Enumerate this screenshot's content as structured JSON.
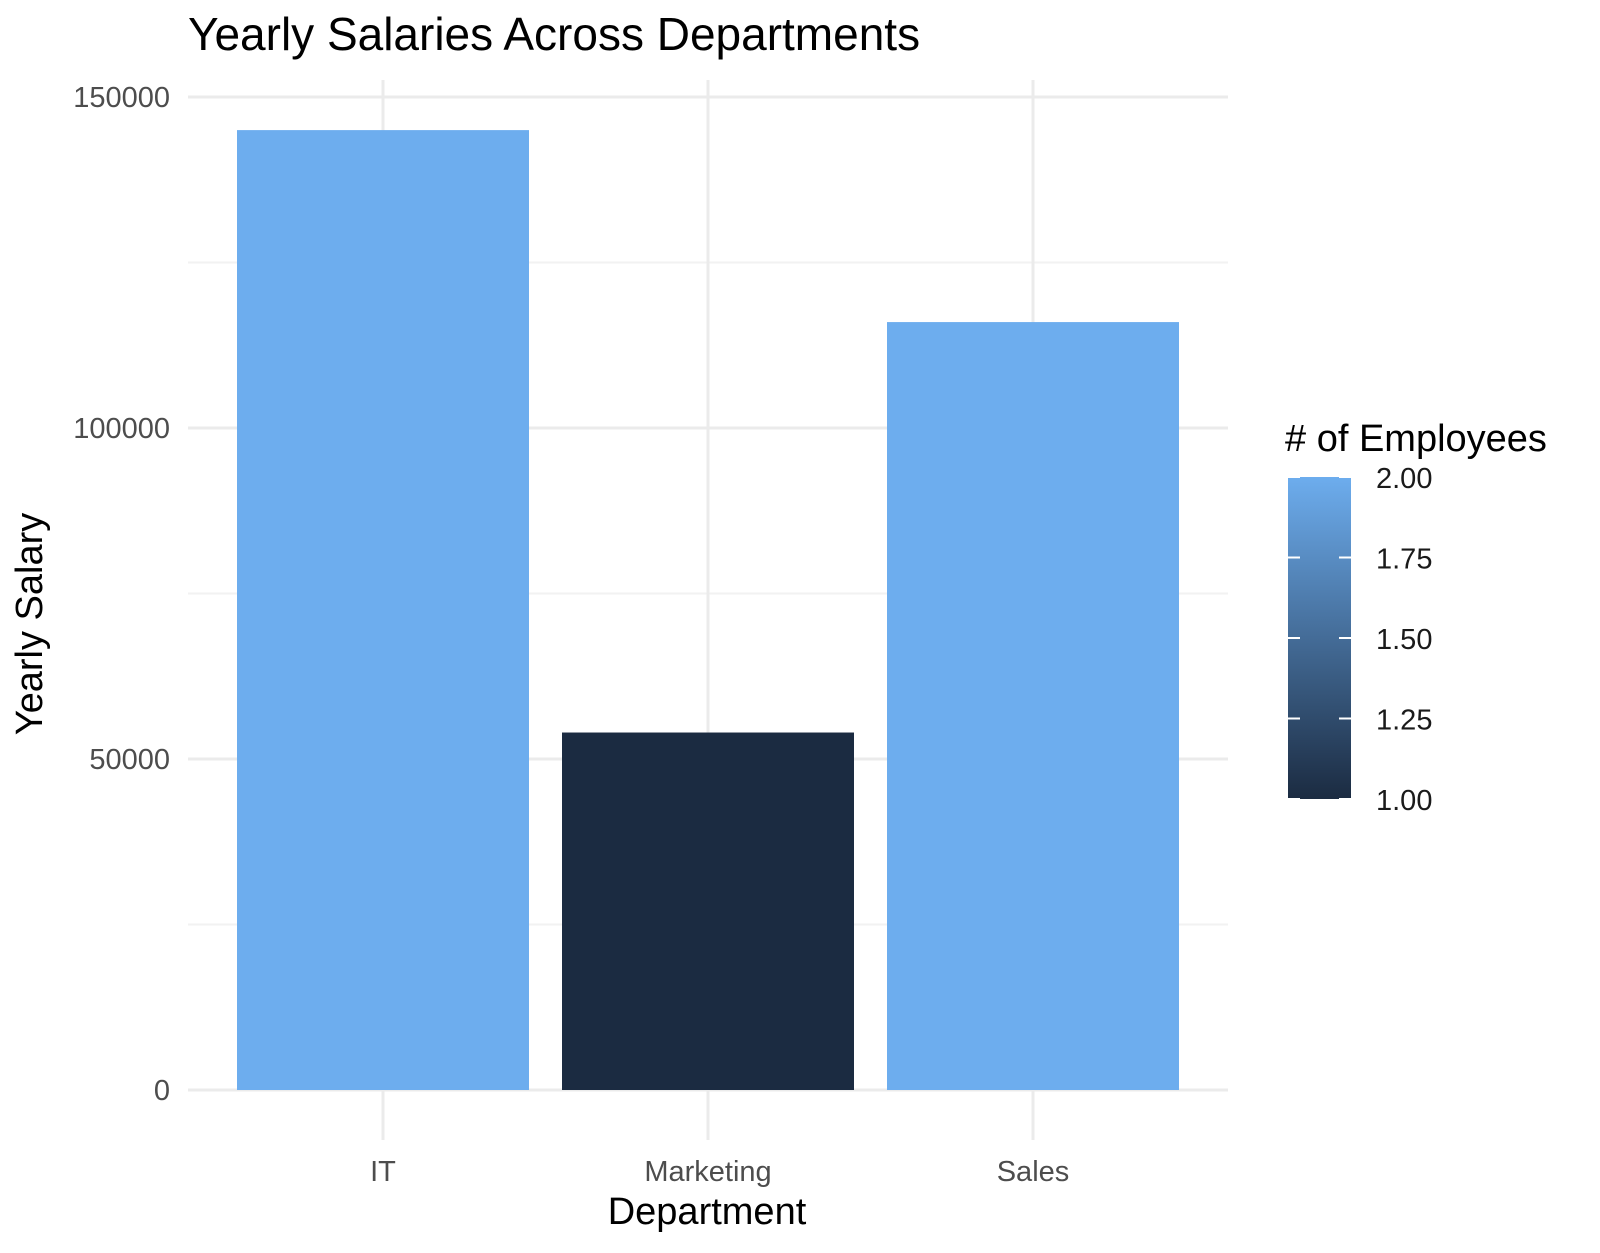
{
  "chart_data": {
    "type": "bar",
    "title": "Yearly Salaries Across Departments",
    "xlabel": "Department",
    "ylabel": "Yearly Salary",
    "categories": [
      "IT",
      "Marketing",
      "Sales"
    ],
    "values": [
      145000,
      54000,
      116000
    ],
    "fill_values": [
      2,
      1,
      2
    ],
    "ylim": [
      0,
      150000
    ],
    "yticks": [
      0,
      50000,
      100000,
      150000
    ],
    "ytick_labels": [
      "0",
      "50000",
      "100000",
      "150000"
    ],
    "grid": true,
    "legend": {
      "title": "# of Employees",
      "position": "right",
      "type": "colorbar",
      "range": [
        1,
        2
      ],
      "ticks": [
        1,
        1.25,
        1.5,
        1.75,
        2
      ],
      "tick_labels": [
        "1.00",
        "1.25",
        "1.50",
        "1.75",
        "2.00"
      ],
      "color_low": "#1b2b41",
      "color_high": "#6dadee"
    }
  }
}
